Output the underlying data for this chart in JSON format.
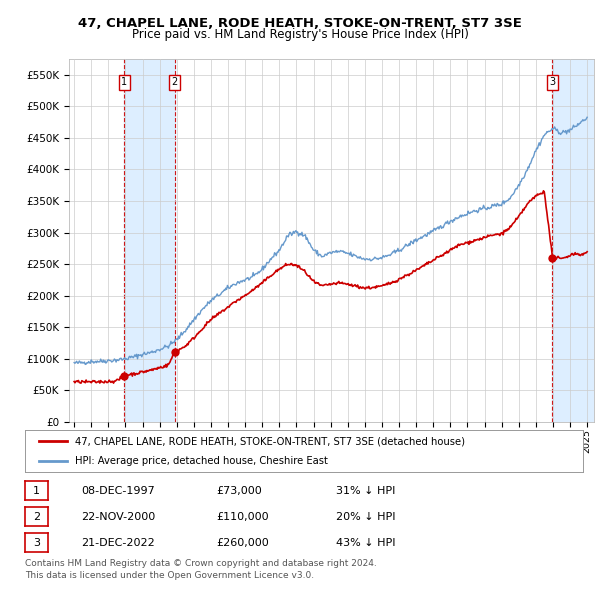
{
  "title": "47, CHAPEL LANE, RODE HEATH, STOKE-ON-TRENT, ST7 3SE",
  "subtitle": "Price paid vs. HM Land Registry's House Price Index (HPI)",
  "ylim": [
    0,
    575000
  ],
  "xlim_start": 1994.7,
  "xlim_end": 2025.4,
  "sales": [
    {
      "label": "1",
      "date_dec": 1997.94,
      "price": 73000,
      "date_str": "08-DEC-1997",
      "pct": "31%"
    },
    {
      "label": "2",
      "date_dec": 2000.89,
      "price": 110000,
      "date_str": "22-NOV-2000",
      "pct": "20%"
    },
    {
      "label": "3",
      "date_dec": 2022.97,
      "price": 260000,
      "date_str": "21-DEC-2022",
      "pct": "43%"
    }
  ],
  "legend_line1": "47, CHAPEL LANE, RODE HEATH, STOKE-ON-TRENT, ST7 3SE (detached house)",
  "legend_line2": "HPI: Average price, detached house, Cheshire East",
  "footer1": "Contains HM Land Registry data © Crown copyright and database right 2024.",
  "footer2": "This data is licensed under the Open Government Licence v3.0.",
  "table_rows": [
    [
      "1",
      "08-DEC-1997",
      "£73,000",
      "31% ↓ HPI"
    ],
    [
      "2",
      "22-NOV-2000",
      "£110,000",
      "20% ↓ HPI"
    ],
    [
      "3",
      "21-DEC-2022",
      "£260,000",
      "43% ↓ HPI"
    ]
  ],
  "red_color": "#cc0000",
  "blue_color": "#6699cc",
  "shade_color": "#ddeeff",
  "bg_color": "#ffffff",
  "grid_color": "#cccccc",
  "hpi_anchors": [
    [
      1995.0,
      93000
    ],
    [
      1995.5,
      94000
    ],
    [
      1996.0,
      95500
    ],
    [
      1996.5,
      96000
    ],
    [
      1997.0,
      97000
    ],
    [
      1997.5,
      98000
    ],
    [
      1998.0,
      100000
    ],
    [
      1998.5,
      103000
    ],
    [
      1999.0,
      107000
    ],
    [
      1999.5,
      110000
    ],
    [
      2000.0,
      115000
    ],
    [
      2000.5,
      120000
    ],
    [
      2001.0,
      130000
    ],
    [
      2001.5,
      145000
    ],
    [
      2002.0,
      162000
    ],
    [
      2002.5,
      178000
    ],
    [
      2003.0,
      192000
    ],
    [
      2003.5,
      202000
    ],
    [
      2004.0,
      212000
    ],
    [
      2004.5,
      220000
    ],
    [
      2005.0,
      225000
    ],
    [
      2005.5,
      230000
    ],
    [
      2006.0,
      242000
    ],
    [
      2006.5,
      258000
    ],
    [
      2007.0,
      272000
    ],
    [
      2007.5,
      295000
    ],
    [
      2008.0,
      302000
    ],
    [
      2008.5,
      295000
    ],
    [
      2009.0,
      272000
    ],
    [
      2009.5,
      262000
    ],
    [
      2010.0,
      268000
    ],
    [
      2010.5,
      270000
    ],
    [
      2011.0,
      267000
    ],
    [
      2011.5,
      262000
    ],
    [
      2012.0,
      258000
    ],
    [
      2012.5,
      258000
    ],
    [
      2013.0,
      260000
    ],
    [
      2013.5,
      265000
    ],
    [
      2014.0,
      272000
    ],
    [
      2014.5,
      280000
    ],
    [
      2015.0,
      288000
    ],
    [
      2015.5,
      295000
    ],
    [
      2016.0,
      302000
    ],
    [
      2016.5,
      310000
    ],
    [
      2017.0,
      318000
    ],
    [
      2017.5,
      325000
    ],
    [
      2018.0,
      330000
    ],
    [
      2018.5,
      335000
    ],
    [
      2019.0,
      338000
    ],
    [
      2019.5,
      342000
    ],
    [
      2020.0,
      345000
    ],
    [
      2020.5,
      355000
    ],
    [
      2021.0,
      375000
    ],
    [
      2021.5,
      400000
    ],
    [
      2022.0,
      430000
    ],
    [
      2022.5,
      455000
    ],
    [
      2023.0,
      465000
    ],
    [
      2023.5,
      458000
    ],
    [
      2024.0,
      462000
    ],
    [
      2024.5,
      472000
    ],
    [
      2025.0,
      482000
    ]
  ],
  "red_anchors": [
    [
      1995.0,
      63000
    ],
    [
      1995.5,
      63500
    ],
    [
      1996.0,
      63000
    ],
    [
      1996.5,
      63500
    ],
    [
      1997.0,
      64000
    ],
    [
      1997.5,
      65000
    ],
    [
      1997.94,
      73000
    ],
    [
      1998.0,
      74000
    ],
    [
      1998.5,
      76000
    ],
    [
      1999.0,
      79000
    ],
    [
      1999.5,
      82000
    ],
    [
      2000.0,
      86000
    ],
    [
      2000.5,
      90000
    ],
    [
      2000.89,
      110000
    ],
    [
      2001.0,
      112000
    ],
    [
      2001.5,
      120000
    ],
    [
      2002.0,
      133000
    ],
    [
      2002.5,
      148000
    ],
    [
      2003.0,
      162000
    ],
    [
      2003.5,
      172000
    ],
    [
      2004.0,
      182000
    ],
    [
      2004.5,
      192000
    ],
    [
      2005.0,
      200000
    ],
    [
      2005.5,
      210000
    ],
    [
      2006.0,
      220000
    ],
    [
      2006.5,
      232000
    ],
    [
      2007.0,
      242000
    ],
    [
      2007.5,
      250000
    ],
    [
      2008.0,
      248000
    ],
    [
      2008.5,
      238000
    ],
    [
      2009.0,
      222000
    ],
    [
      2009.5,
      215000
    ],
    [
      2010.0,
      218000
    ],
    [
      2010.5,
      220000
    ],
    [
      2011.0,
      218000
    ],
    [
      2011.5,
      215000
    ],
    [
      2012.0,
      212000
    ],
    [
      2012.5,
      213000
    ],
    [
      2013.0,
      215000
    ],
    [
      2013.5,
      220000
    ],
    [
      2014.0,
      226000
    ],
    [
      2014.5,
      233000
    ],
    [
      2015.0,
      240000
    ],
    [
      2015.5,
      248000
    ],
    [
      2016.0,
      256000
    ],
    [
      2016.5,
      264000
    ],
    [
      2017.0,
      272000
    ],
    [
      2017.5,
      280000
    ],
    [
      2018.0,
      284000
    ],
    [
      2018.5,
      288000
    ],
    [
      2019.0,
      292000
    ],
    [
      2019.5,
      296000
    ],
    [
      2020.0,
      298000
    ],
    [
      2020.5,
      308000
    ],
    [
      2021.0,
      325000
    ],
    [
      2021.5,
      345000
    ],
    [
      2022.0,
      358000
    ],
    [
      2022.5,
      365000
    ],
    [
      2022.97,
      260000
    ],
    [
      2023.0,
      258000
    ],
    [
      2023.2,
      260000
    ],
    [
      2023.5,
      258000
    ],
    [
      2023.8,
      262000
    ],
    [
      2024.0,
      264000
    ],
    [
      2024.3,
      267000
    ],
    [
      2024.6,
      265000
    ],
    [
      2025.0,
      268000
    ]
  ]
}
